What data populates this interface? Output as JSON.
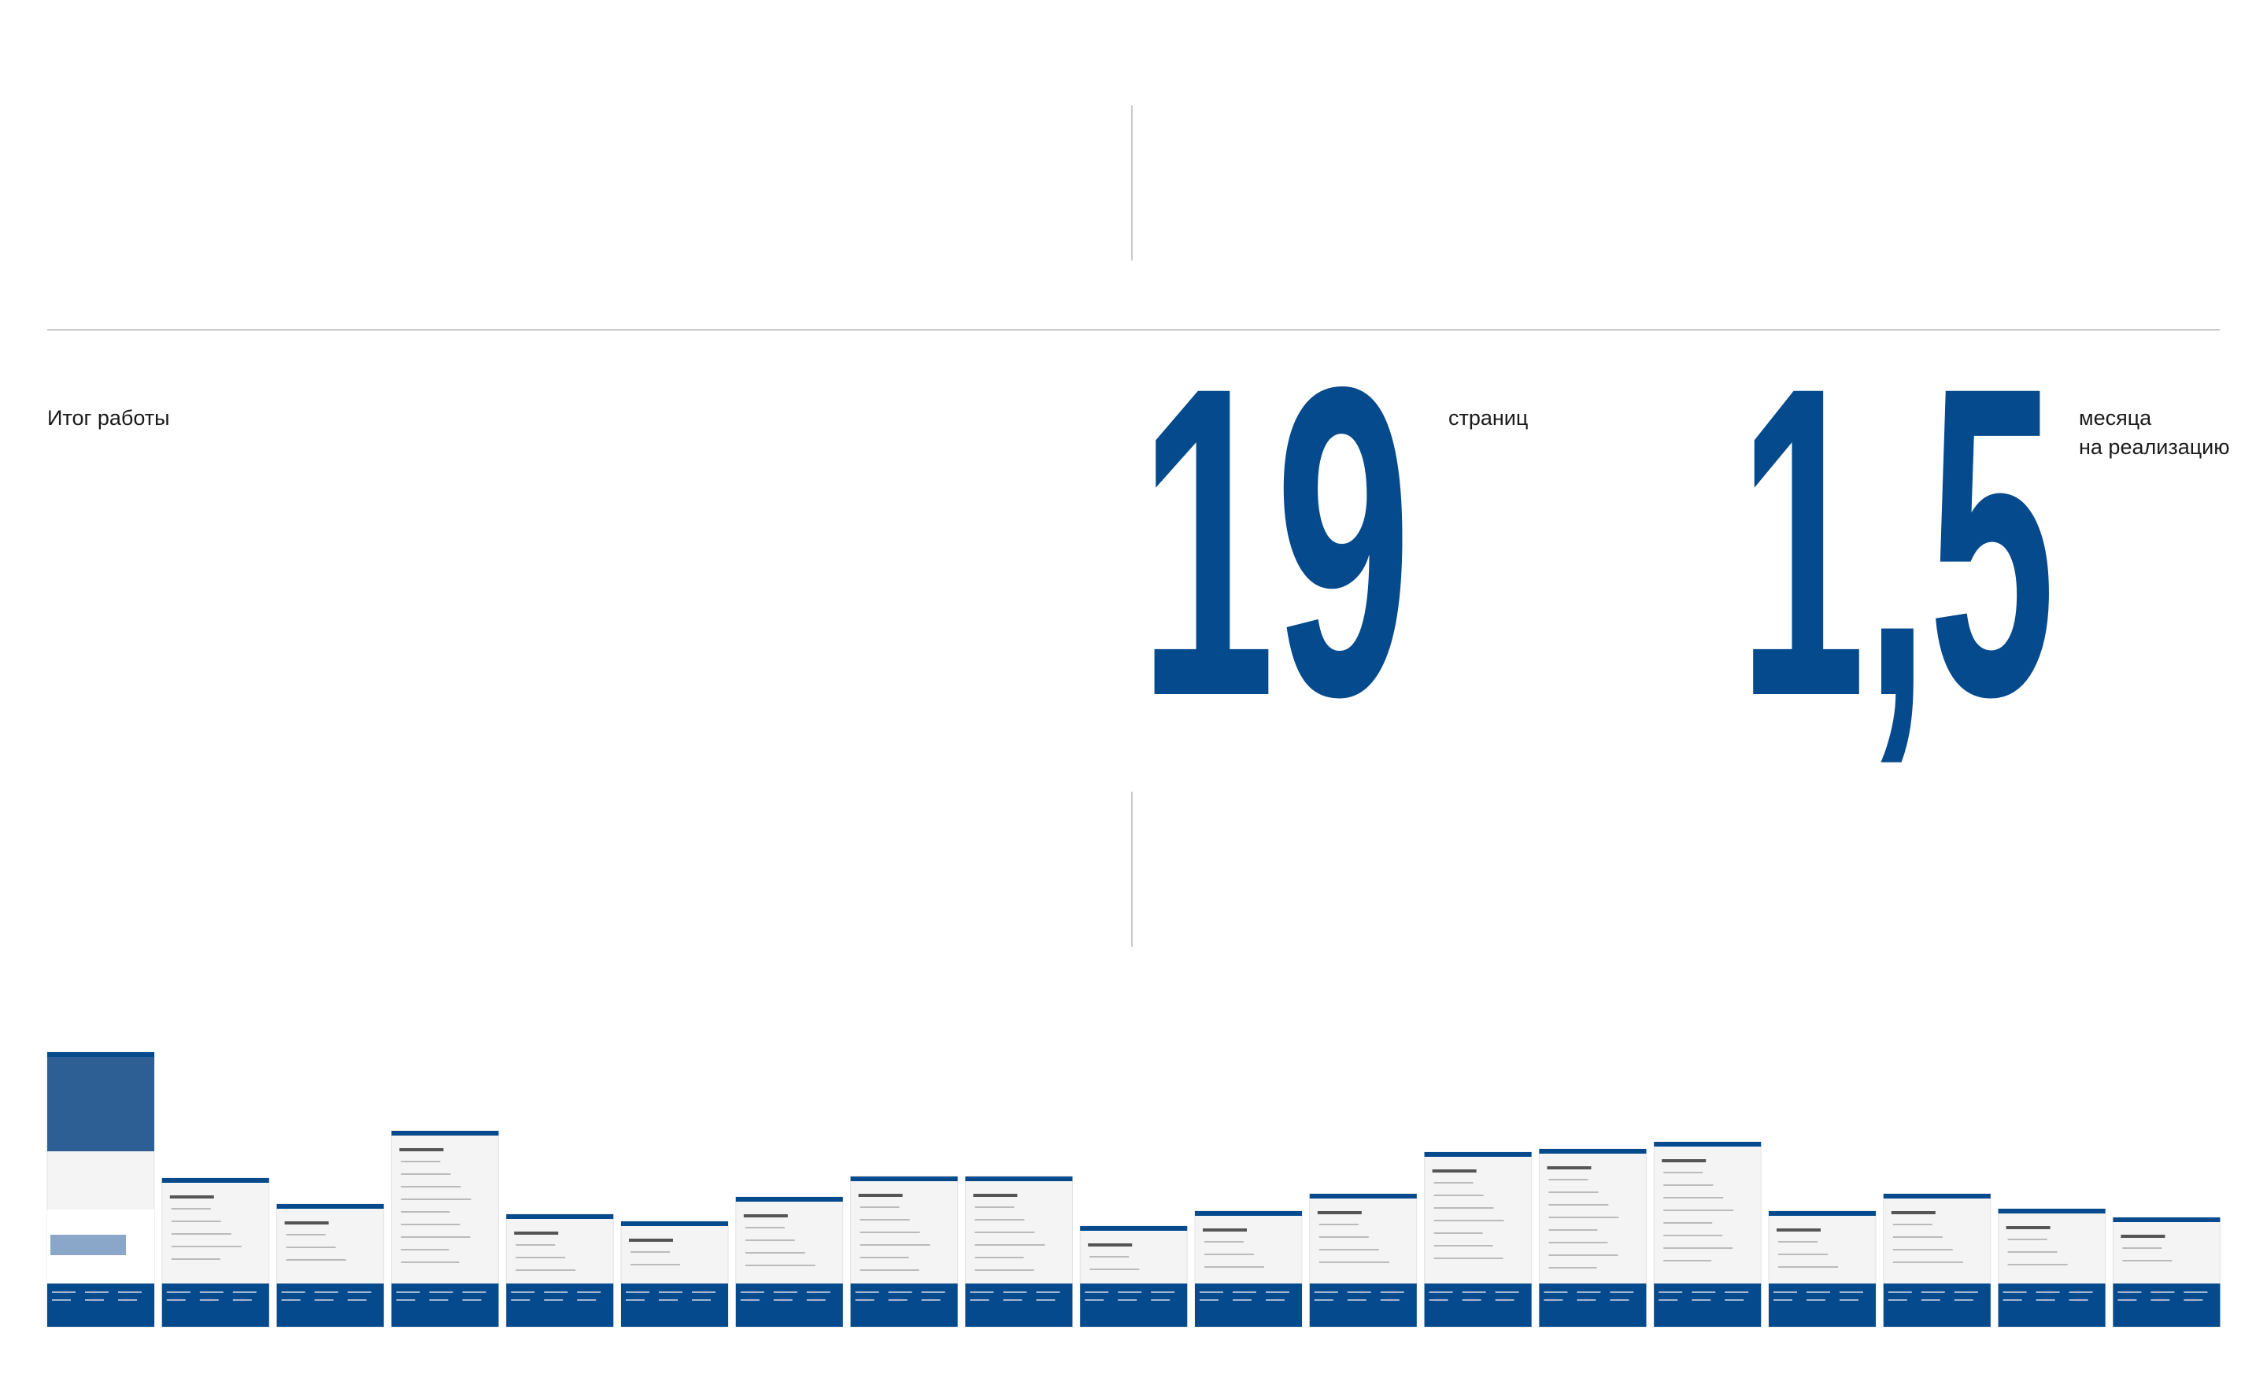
{
  "summary": {
    "label": "Итог работы",
    "stats": [
      {
        "number": "19",
        "caption": [
          "страниц"
        ]
      },
      {
        "number": "1,5",
        "caption": [
          "месяца",
          "на реализацию"
        ]
      }
    ]
  }
}
